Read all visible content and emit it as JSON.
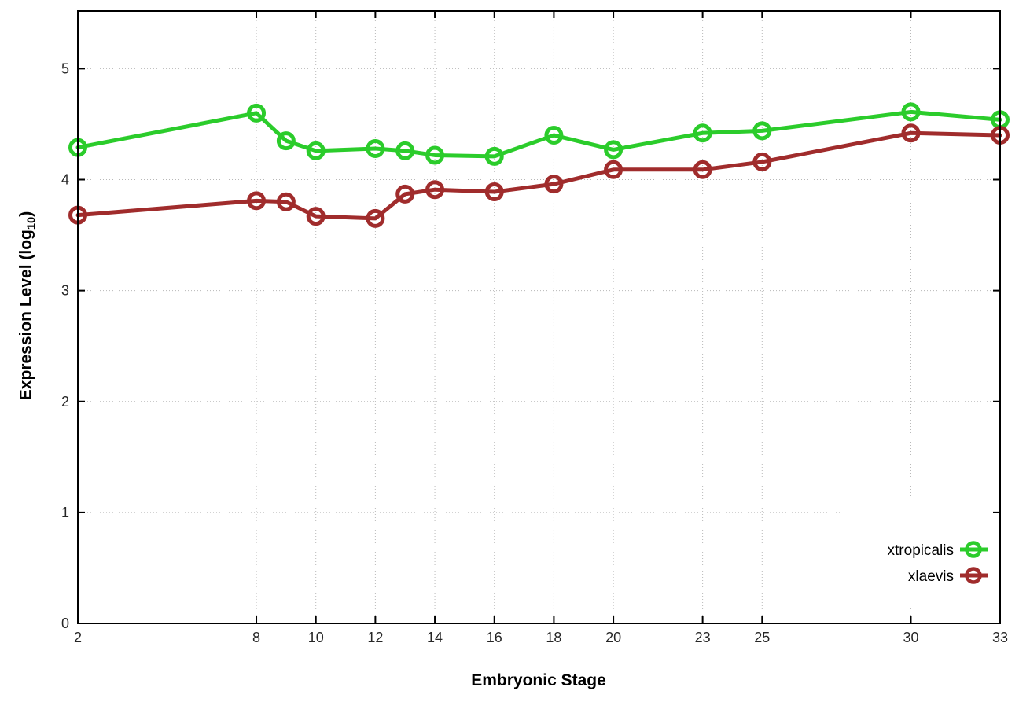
{
  "figure": {
    "xlabel": "Embryonic Stage",
    "ylabel_prefix": "Expression Level (log",
    "ylabel_sub": "10",
    "ylabel_suffix": ")"
  },
  "chart_data": {
    "type": "line",
    "x": [
      2,
      8,
      9,
      10,
      12,
      13,
      14,
      16,
      18,
      20,
      23,
      25,
      30,
      33
    ],
    "series": [
      {
        "name": "xtropicalis",
        "color": "#2bcc2b",
        "values": [
          4.29,
          4.6,
          4.35,
          4.26,
          4.28,
          4.26,
          4.22,
          4.21,
          4.4,
          4.27,
          4.42,
          4.44,
          4.61,
          4.54
        ]
      },
      {
        "name": "xlaevis",
        "color": "#a02c2c",
        "values": [
          3.68,
          3.81,
          3.8,
          3.67,
          3.65,
          3.87,
          3.91,
          3.89,
          3.96,
          4.09,
          4.09,
          4.16,
          4.42,
          4.4
        ]
      }
    ],
    "title": "",
    "xlabel": "Embryonic Stage",
    "ylabel": "Expression Level (log10)",
    "x_ticks": [
      2,
      8,
      10,
      12,
      14,
      16,
      18,
      20,
      23,
      25,
      30,
      33
    ],
    "y_ticks": [
      0,
      1,
      2,
      3,
      4,
      5
    ],
    "xlim": [
      2,
      33
    ],
    "ylim": [
      0,
      5.52
    ],
    "grid": true,
    "grid_color": "#b8b8b8",
    "tick_label_color": "#262626",
    "border_color": "#000000",
    "legend_position": "bottom-right-inside",
    "marker": "open-circle"
  }
}
